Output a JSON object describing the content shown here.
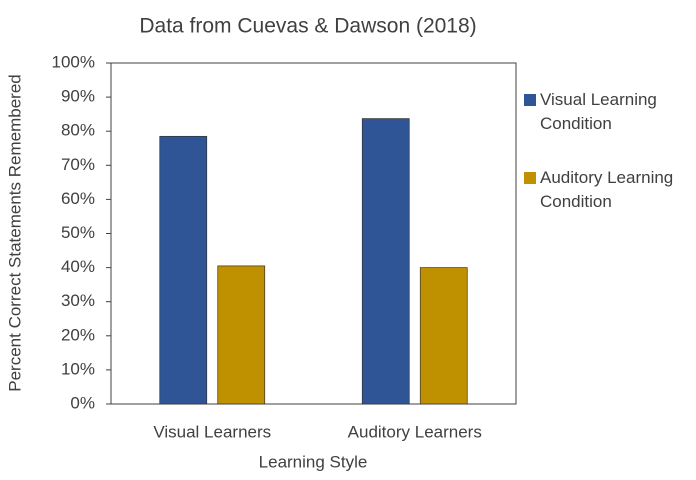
{
  "chart_data": {
    "type": "bar",
    "title": "Data from Cuevas & Dawson (2018)",
    "x_label": "Learning Style",
    "y_label": "Percent Correct Statements Remembered",
    "categories": [
      "Visual Learners",
      "Auditory Learners"
    ],
    "series": [
      {
        "name": "Visual Learning Condition",
        "color": "#2f5597",
        "values": [
          78.5,
          83.7
        ]
      },
      {
        "name": "Auditory Learning Condition",
        "color": "#bf9000",
        "values": [
          40.5,
          40
        ]
      }
    ],
    "ylim": [
      0,
      100
    ],
    "yticks": [
      {
        "value": 0,
        "label": "0%"
      },
      {
        "value": 10,
        "label": "10%"
      },
      {
        "value": 20,
        "label": "20%"
      },
      {
        "value": 30,
        "label": "30%"
      },
      {
        "value": 40,
        "label": "40%"
      },
      {
        "value": 50,
        "label": "50%"
      },
      {
        "value": 60,
        "label": "60%"
      },
      {
        "value": 70,
        "label": "70%"
      },
      {
        "value": 80,
        "label": "80%"
      },
      {
        "value": 90,
        "label": "90%"
      },
      {
        "value": 100,
        "label": "100%"
      }
    ],
    "grid": false,
    "legend": "right"
  }
}
